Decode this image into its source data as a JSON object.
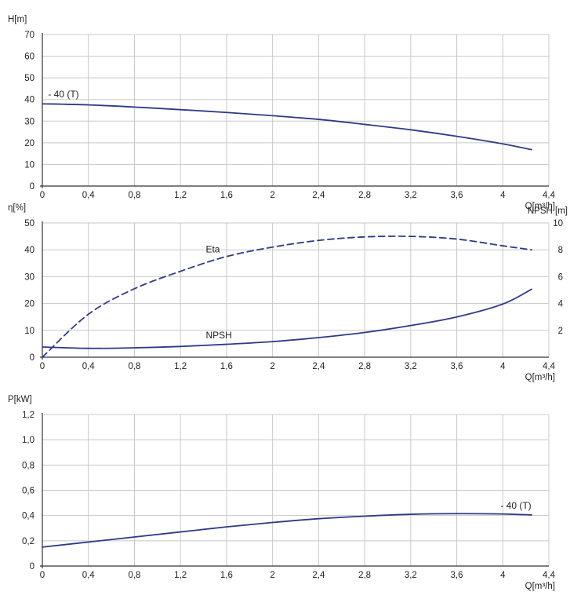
{
  "colors": {
    "curve": "#2e3a87",
    "grid": "#c8c8c8",
    "axis": "#333333",
    "text": "#222222"
  },
  "chart_data": [
    {
      "type": "line",
      "ylabel": "H[m]",
      "xlabel": "Q[m³/h]",
      "xlim": [
        0,
        4.4
      ],
      "ylim": [
        0,
        70
      ],
      "xticks": [
        "0",
        "0,4",
        "0,8",
        "1,2",
        "1,6",
        "2",
        "2,4",
        "2,8",
        "3,2",
        "3,6",
        "4",
        "4,4"
      ],
      "yticks": [
        "0",
        "10",
        "20",
        "30",
        "40",
        "50",
        "60",
        "70"
      ],
      "grid": true,
      "series": [
        {
          "name": "40 (T)",
          "style": "solid",
          "x": [
            0,
            0.4,
            0.8,
            1.2,
            1.6,
            2.0,
            2.4,
            2.8,
            3.2,
            3.6,
            4.0,
            4.25
          ],
          "y": [
            38.0,
            37.5,
            36.5,
            35.3,
            34.0,
            32.5,
            30.8,
            28.5,
            26.0,
            23.0,
            19.5,
            16.8
          ]
        }
      ],
      "annotations": [
        {
          "text": "- 40 (T)",
          "x": 0.05,
          "y": 41
        }
      ]
    },
    {
      "type": "line",
      "ylabel": "η[%]",
      "y2label": "NPSH [m]",
      "xlabel": "Q[m³/h]",
      "xlim": [
        0,
        4.4
      ],
      "ylim": [
        0,
        50
      ],
      "y2lim": [
        0,
        10
      ],
      "xticks": [
        "0",
        "0,4",
        "0,8",
        "1,2",
        "1,6",
        "2",
        "2,4",
        "2,8",
        "3,2",
        "3,6",
        "4",
        "4,4"
      ],
      "yticks": [
        "0",
        "10",
        "20",
        "30",
        "40",
        "50"
      ],
      "y2ticks": [
        "2",
        "4",
        "6",
        "8",
        "10"
      ],
      "grid": true,
      "series": [
        {
          "name": "Eta",
          "style": "dashed",
          "axis": "left",
          "x": [
            0,
            0.4,
            0.8,
            1.2,
            1.6,
            2.0,
            2.4,
            2.8,
            3.2,
            3.6,
            4.0,
            4.25
          ],
          "y": [
            0,
            16,
            25.5,
            32,
            37.5,
            41,
            43.5,
            44.8,
            45,
            44,
            41.5,
            40
          ]
        },
        {
          "name": "NPSH",
          "style": "solid",
          "axis": "left",
          "x": [
            0,
            0.4,
            0.8,
            1.2,
            1.6,
            2.0,
            2.4,
            2.8,
            3.2,
            3.6,
            4.0,
            4.25
          ],
          "y": [
            3.8,
            3.3,
            3.5,
            4.0,
            4.8,
            5.8,
            7.3,
            9.2,
            11.8,
            15.0,
            19.8,
            25.3
          ]
        }
      ],
      "annotations": [
        {
          "text": "Eta",
          "x": 1.42,
          "y": 39
        },
        {
          "text": "NPSH",
          "x": 1.42,
          "y": 7
        }
      ]
    },
    {
      "type": "line",
      "ylabel": "P[kW]",
      "xlabel": "Q[m³/h]",
      "xlim": [
        0,
        4.4
      ],
      "ylim": [
        0,
        1.2
      ],
      "xticks": [
        "0",
        "0,4",
        "0,8",
        "1,2",
        "1,6",
        "2",
        "2,4",
        "2,8",
        "3,2",
        "3,6",
        "4",
        "4,4"
      ],
      "yticks": [
        "0",
        "0,2",
        "0,4",
        "0,6",
        "0,8",
        "1,0",
        "1,2"
      ],
      "grid": true,
      "series": [
        {
          "name": "40 (T)",
          "style": "solid",
          "x": [
            0,
            0.4,
            0.8,
            1.2,
            1.6,
            2.0,
            2.4,
            2.8,
            3.2,
            3.6,
            4.0,
            4.25
          ],
          "y": [
            0.15,
            0.19,
            0.23,
            0.27,
            0.31,
            0.345,
            0.375,
            0.395,
            0.41,
            0.415,
            0.412,
            0.405
          ]
        }
      ],
      "annotations": [
        {
          "text": "- 40 (T)",
          "x": 3.98,
          "y": 0.455
        }
      ]
    }
  ]
}
